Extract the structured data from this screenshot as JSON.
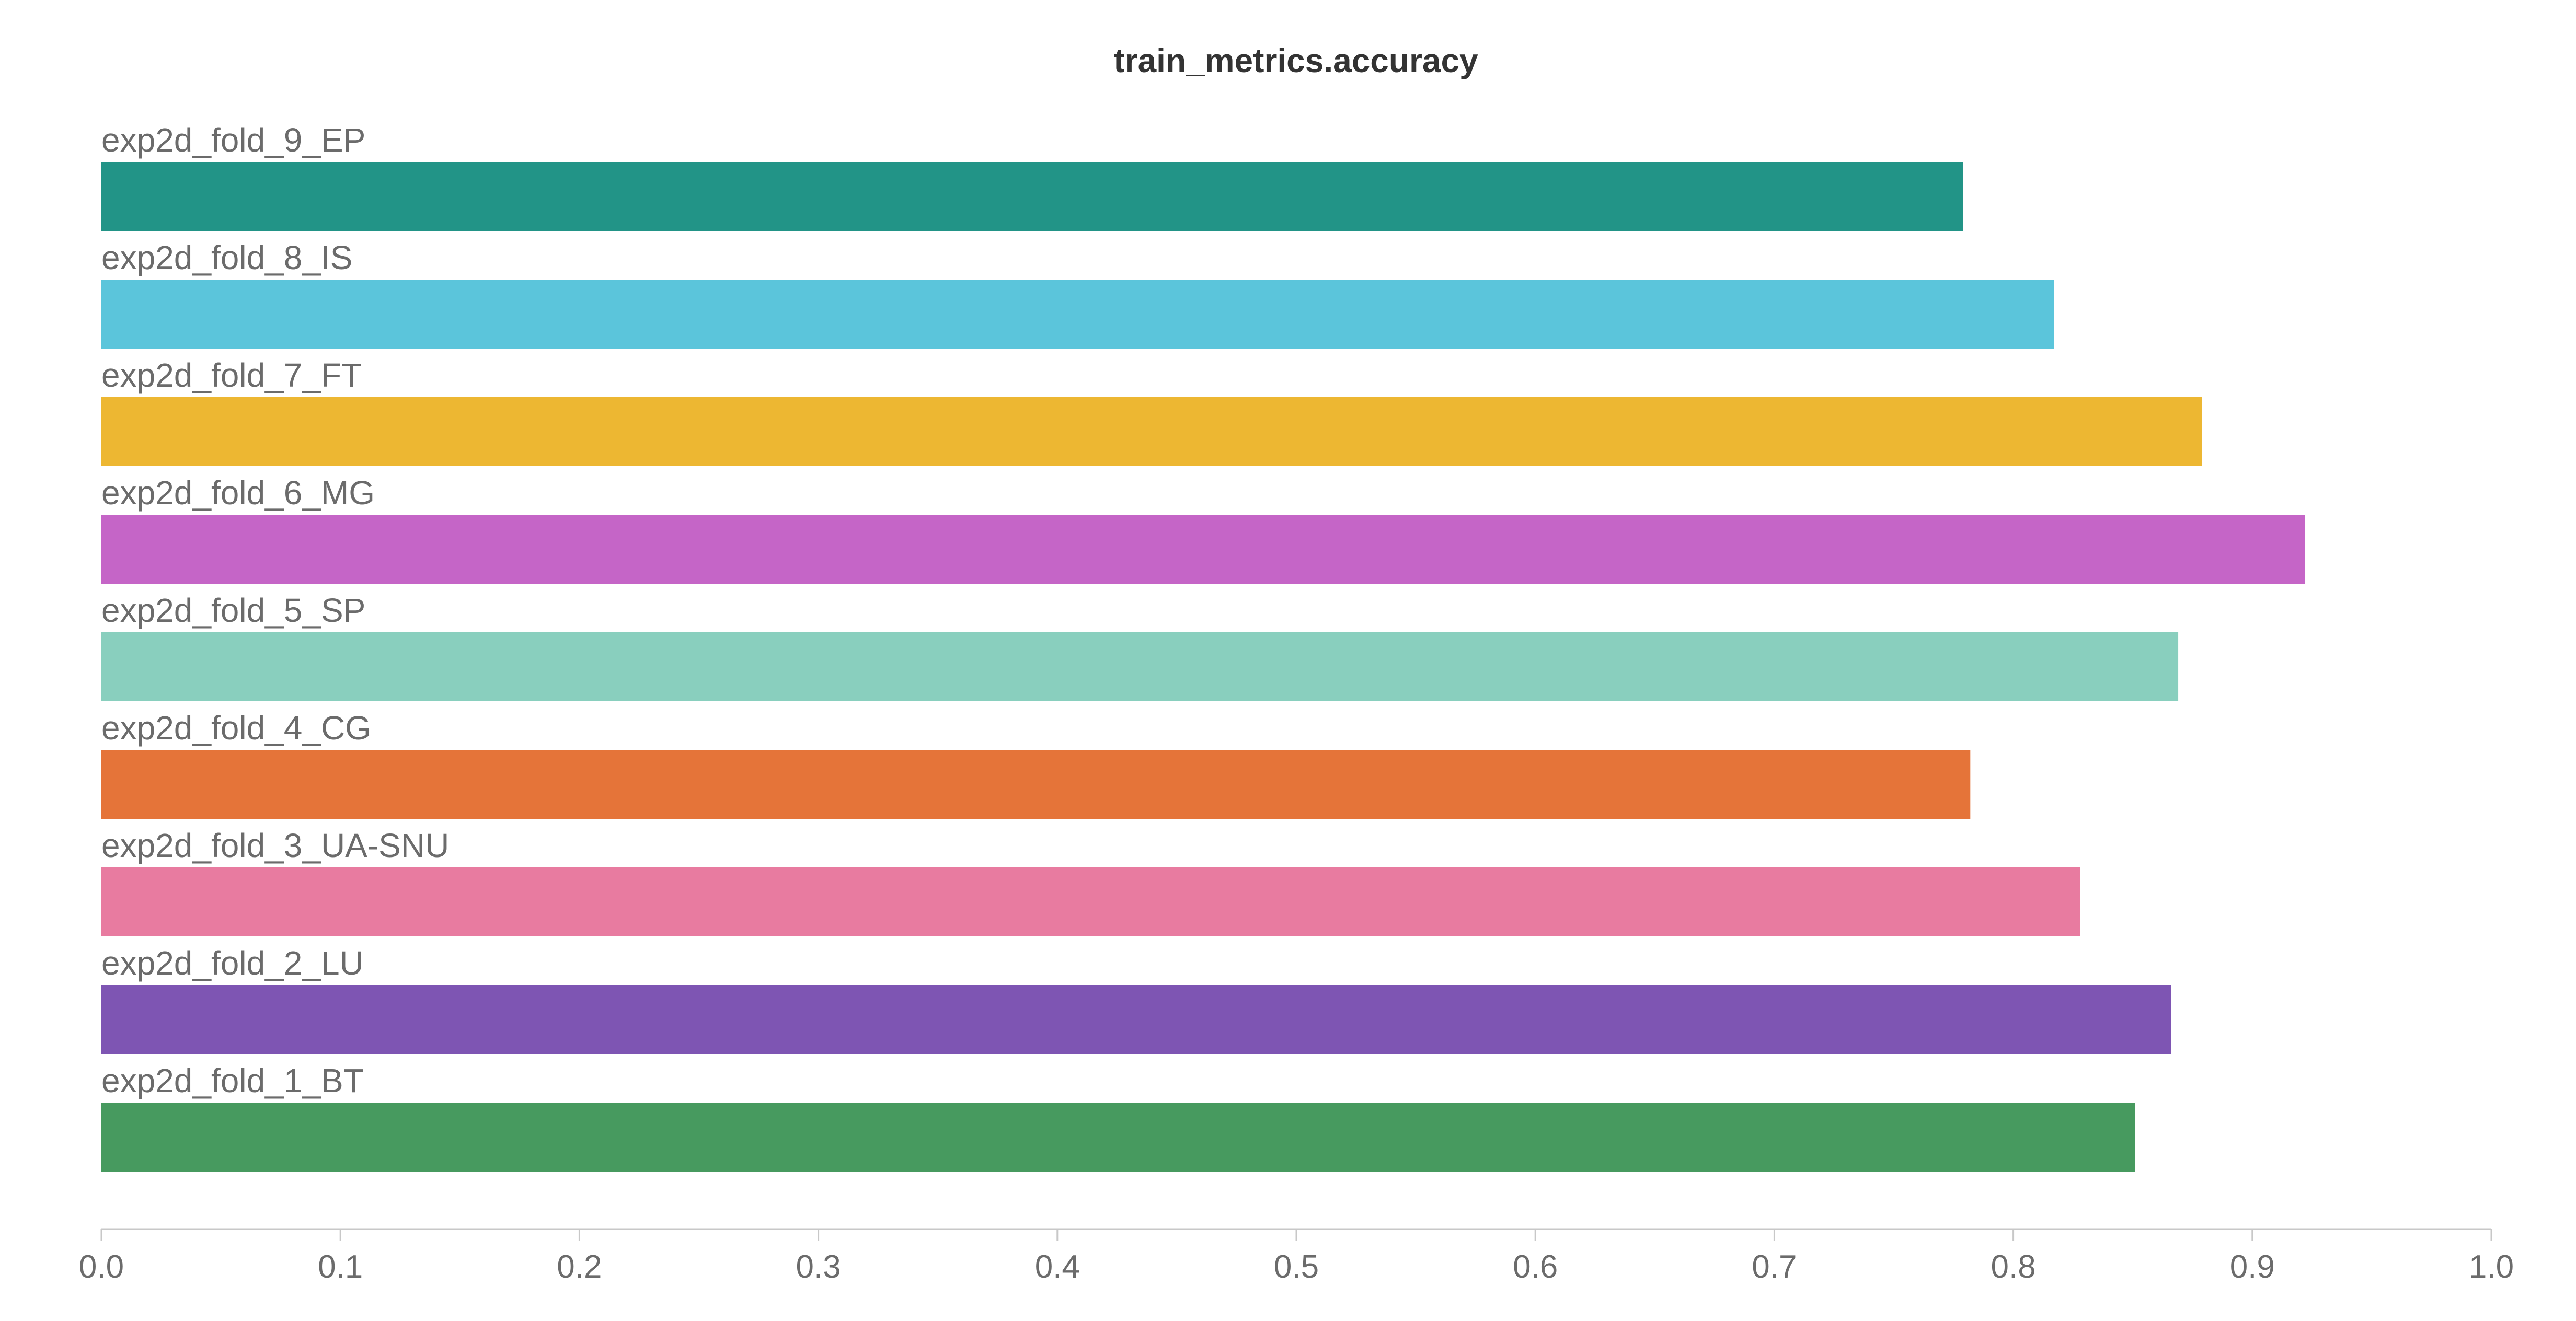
{
  "chart_data": {
    "type": "bar",
    "orientation": "horizontal",
    "title": "train_metrics.accuracy",
    "xlabel": "",
    "ylabel": "",
    "xlim": [
      0,
      1
    ],
    "x_ticks": [
      "0.0",
      "0.1",
      "0.2",
      "0.3",
      "0.4",
      "0.5",
      "0.6",
      "0.7",
      "0.8",
      "0.9",
      "1.0"
    ],
    "grid": false,
    "legend": "none",
    "categories": [
      "exp2d_fold_9_EP",
      "exp2d_fold_8_IS",
      "exp2d_fold_7_FT",
      "exp2d_fold_6_MG",
      "exp2d_fold_5_SP",
      "exp2d_fold_4_CG",
      "exp2d_fold_3_UA-SNU",
      "exp2d_fold_2_LU",
      "exp2d_fold_1_BT"
    ],
    "values": [
      0.779,
      0.817,
      0.879,
      0.922,
      0.869,
      0.782,
      0.828,
      0.866,
      0.851
    ],
    "colors": [
      "#229487",
      "#5bc5db",
      "#edb732",
      "#c565c7",
      "#89cfbe",
      "#e57439",
      "#e87ba0",
      "#7e55b3",
      "#479a5f"
    ]
  }
}
